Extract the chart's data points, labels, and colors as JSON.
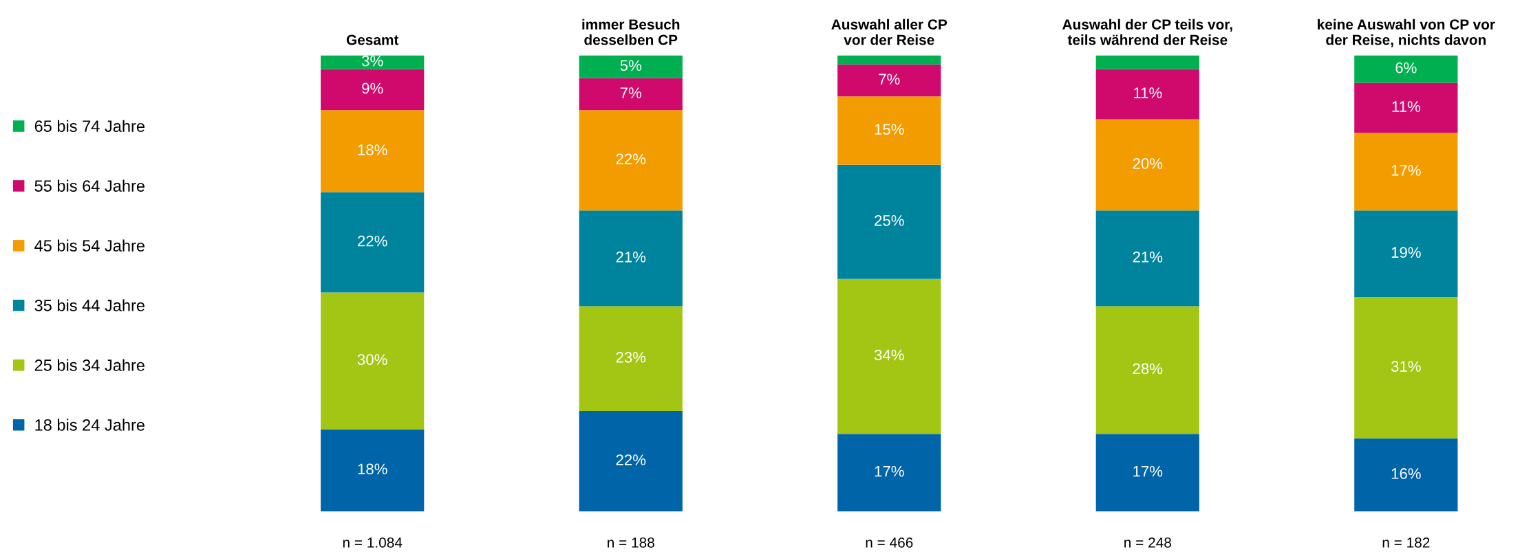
{
  "chart_data": {
    "type": "bar",
    "stacked": true,
    "categories": [
      "Gesamt",
      "immer Besuch\ndesselben CP",
      "Auswahl aller CP\nvor der Reise",
      "Auswahl der CP teils vor,\nteils während der Reise",
      "keine Auswahl von CP vor\nder Reise, nichts davon"
    ],
    "series": [
      {
        "name": "18 bis 24 Jahre",
        "color": "#0064a8",
        "values": [
          18,
          22,
          17,
          17,
          16
        ],
        "value_labels": [
          "18%",
          "22%",
          "17%",
          "17%",
          "16%"
        ]
      },
      {
        "name": "25 bis 34 Jahre",
        "color": "#a3c615",
        "values": [
          30,
          23,
          34,
          28,
          31
        ],
        "value_labels": [
          "30%",
          "23%",
          "34%",
          "28%",
          "31%"
        ]
      },
      {
        "name": "35 bis 44 Jahre",
        "color": "#00849e",
        "values": [
          22,
          21,
          25,
          21,
          19
        ],
        "value_labels": [
          "22%",
          "21%",
          "25%",
          "21%",
          "19%"
        ]
      },
      {
        "name": "45 bis 54 Jahre",
        "color": "#f39c00",
        "values": [
          18,
          22,
          15,
          20,
          17
        ],
        "value_labels": [
          "18%",
          "22%",
          "15%",
          "20%",
          "17%"
        ]
      },
      {
        "name": "55 bis 64 Jahre",
        "color": "#cf0a6c",
        "values": [
          9,
          7,
          7,
          11,
          11
        ],
        "value_labels": [
          "9%",
          "7%",
          "7%",
          "11%",
          "11%"
        ]
      },
      {
        "name": "65 bis 74 Jahre",
        "color": "#00b050",
        "values": [
          3,
          5,
          2,
          3,
          6
        ],
        "value_labels": [
          "3%",
          "5%",
          null,
          null,
          "6%"
        ]
      }
    ],
    "ylim": [
      0,
      100
    ],
    "tick_labels": "x",
    "legend": "left",
    "grid": false,
    "annotations": [
      "n = 1.084",
      "n = 188",
      "n = 466",
      "n = 248",
      "n = 182"
    ]
  }
}
